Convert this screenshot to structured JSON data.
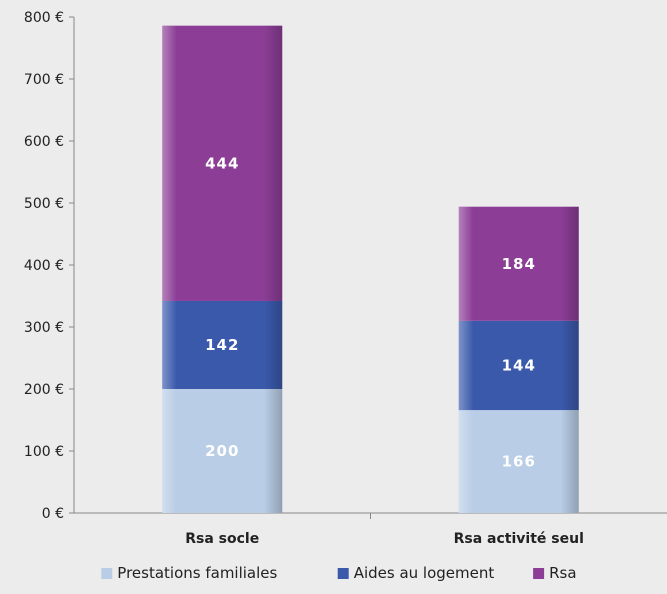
{
  "chart_data": {
    "type": "bar",
    "stacked": true,
    "categories": [
      "Rsa socle",
      "Rsa activité seul"
    ],
    "series": [
      {
        "name": "Prestations familiales",
        "values": [
          200,
          166
        ],
        "color": "#b9cde6",
        "labels": [
          "200",
          "166"
        ]
      },
      {
        "name": "Aides au logement",
        "values": [
          142,
          144
        ],
        "color": "#3b59ab",
        "labels": [
          "142",
          "144"
        ]
      },
      {
        "name": "Rsa",
        "values": [
          444,
          184
        ],
        "color": "#8c3d96",
        "labels": [
          "444",
          "184"
        ]
      }
    ],
    "ylim": [
      0,
      800
    ],
    "y_ticks": [
      0,
      100,
      200,
      300,
      400,
      500,
      600,
      700,
      800
    ],
    "y_tick_labels": [
      "0 €",
      "100 €",
      "200 €",
      "300 €",
      "400 €",
      "500 €",
      "600 €",
      "700 €",
      "800 €"
    ],
    "grid": false,
    "legend_position": "bottom",
    "title": "",
    "xlabel": "",
    "ylabel": ""
  }
}
